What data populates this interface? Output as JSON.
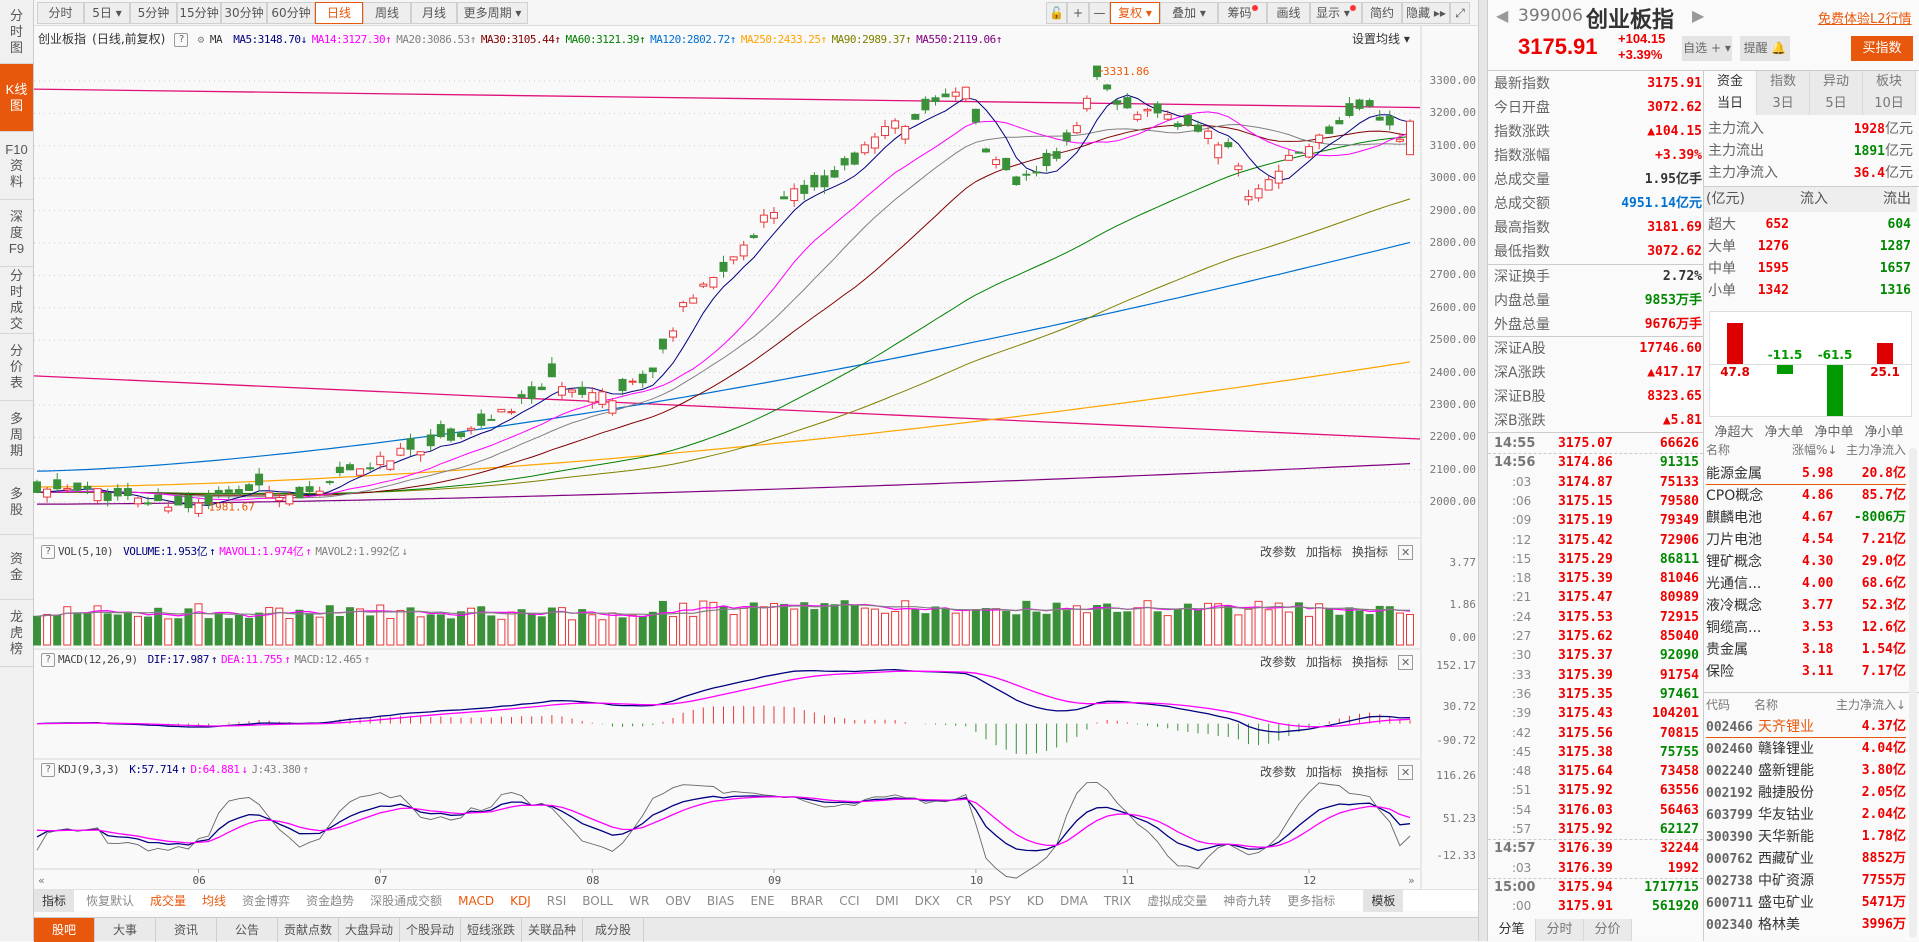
{
  "sidebar": [
    {
      "label": "分时图"
    },
    {
      "label": "K线图"
    },
    {
      "label": "F10资料"
    },
    {
      "label": "深度F9"
    },
    {
      "label": "分时成交"
    },
    {
      "label": "分价表"
    },
    {
      "label": "多周期"
    },
    {
      "label": "多股"
    },
    {
      "label": "资金"
    },
    {
      "label": "龙虎榜"
    }
  ],
  "toolbar": {
    "periods": [
      "分时",
      "5日 ▾",
      "5分钟",
      "15分钟",
      "30分钟",
      "60分钟",
      "日线",
      "周线",
      "月线",
      "更多周期 ▾"
    ],
    "active_period": "日线",
    "tools": [
      "🔓",
      "+",
      "—",
      "复权 ▾",
      "叠加 ▾",
      "筹码",
      "画线",
      "显示 ▾",
      "简约",
      "隐藏 ▸▸",
      "⤢"
    ],
    "active_tool": "复权 ▾"
  },
  "chart": {
    "title": "创业板指",
    "mode": "(日线,前复权)",
    "help": "?",
    "ma_label": "MA",
    "ma": [
      {
        "label": "MA5:3148.70",
        "arrow": "↓",
        "color": "#000080"
      },
      {
        "label": "MA14:3127.30",
        "arrow": "↑",
        "color": "#ff00ff"
      },
      {
        "label": "MA20:3086.53",
        "arrow": "↑",
        "color": "#808080"
      },
      {
        "label": "MA30:3105.44",
        "arrow": "↑",
        "color": "#800000"
      },
      {
        "label": "MA60:3121.39",
        "arrow": "↑",
        "color": "#008000"
      },
      {
        "label": "MA120:2802.72",
        "arrow": "↑",
        "color": "#0070d0"
      },
      {
        "label": "MA250:2433.25",
        "arrow": "↑",
        "color": "#ffa500"
      },
      {
        "label": "MA90:2989.37",
        "arrow": "↑",
        "color": "#808000"
      },
      {
        "label": "MA550:2119.06",
        "arrow": "↑",
        "color": "#800080"
      }
    ],
    "set_ma": "设置均线 ▾",
    "y_ticks": [
      "3300.00",
      "3200.00",
      "3100.00",
      "3000.00",
      "2900.00",
      "2800.00",
      "2700.00",
      "2600.00",
      "2500.00",
      "2400.00",
      "2300.00",
      "2200.00",
      "2100.00",
      "2000.00"
    ],
    "x_ticks": [
      "06",
      "07",
      "08",
      "09",
      "10",
      "11",
      "12"
    ],
    "high_label": "3331.86",
    "low_label": "1981.67",
    "scroll_left": "«",
    "scroll_right": "»"
  },
  "panels": {
    "actions": [
      "改参数",
      "加指标",
      "换指标"
    ],
    "close": "✕",
    "vol": {
      "name": "VOL(5,10)",
      "items": [
        {
          "label": "VOLUME:1.953亿",
          "arrow": "↑",
          "color": "#000080"
        },
        {
          "label": "MAVOL1:1.974亿",
          "arrow": "↑",
          "color": "#ff00ff"
        },
        {
          "label": "MAVOL2:1.992亿",
          "arrow": "↓",
          "color": "#808080"
        }
      ],
      "ticks": [
        "3.77",
        "1.86",
        "0.00"
      ]
    },
    "macd": {
      "name": "MACD(12,26,9)",
      "items": [
        {
          "label": "DIF:17.987",
          "arrow": "↑",
          "color": "#000080"
        },
        {
          "label": "DEA:11.755",
          "arrow": "↑",
          "color": "#ff00ff"
        },
        {
          "label": "MACD:12.465",
          "arrow": "↑",
          "color": "#808080"
        }
      ],
      "ticks": [
        "152.17",
        "30.72",
        "-90.72"
      ]
    },
    "kdj": {
      "name": "KDJ(9,3,3)",
      "items": [
        {
          "label": "K:57.714",
          "arrow": "↑",
          "color": "#000080"
        },
        {
          "label": "D:64.881",
          "arrow": "↓",
          "color": "#ff00ff"
        },
        {
          "label": "J:43.380",
          "arrow": "↑",
          "color": "#808080"
        }
      ],
      "ticks": [
        "116.26",
        "51.23",
        "-12.33"
      ]
    }
  },
  "indicator_tabs": [
    {
      "label": "指标",
      "hl": "box"
    },
    {
      "label": "恢复默认"
    },
    {
      "label": "成交量",
      "hl": "orange"
    },
    {
      "label": "均线",
      "hl": "orange"
    },
    {
      "label": "资金博弈"
    },
    {
      "label": "资金趋势"
    },
    {
      "label": "深股通成交额"
    },
    {
      "label": "MACD",
      "hl": "orange"
    },
    {
      "label": "KDJ",
      "hl": "orange"
    },
    {
      "label": "RSI"
    },
    {
      "label": "BOLL"
    },
    {
      "label": "WR"
    },
    {
      "label": "OBV"
    },
    {
      "label": "BIAS"
    },
    {
      "label": "ENE"
    },
    {
      "label": "BRAR"
    },
    {
      "label": "CCI"
    },
    {
      "label": "DMI"
    },
    {
      "label": "DKX"
    },
    {
      "label": "CR"
    },
    {
      "label": "PSY"
    },
    {
      "label": "KD"
    },
    {
      "label": "DMA"
    },
    {
      "label": "TRIX"
    },
    {
      "label": "虚拟成交量"
    },
    {
      "label": "神奇九转"
    },
    {
      "label": "更多指标"
    },
    {
      "label": "模板",
      "hl": "box"
    }
  ],
  "bottom_tabs": [
    "股吧",
    "大事",
    "资讯",
    "公告",
    "贡献点数",
    "大盘异动",
    "个股异动",
    "短线涨跌",
    "关联品种",
    "成分股"
  ],
  "quote": {
    "code": "399006",
    "name": "创业板指",
    "l2_link": "免费体验L2行情",
    "price": "3175.91",
    "change": "+104.15",
    "change_pct": "+3.39%",
    "buttons": {
      "watch": "自选 + ▾",
      "alert": "提醒 🔔",
      "buy": "买指数"
    },
    "info": [
      {
        "label": "最新指数",
        "value": "3175.91",
        "color": "red"
      },
      {
        "label": "今日开盘",
        "value": "3072.62",
        "color": "red"
      },
      {
        "label": "指数涨跌",
        "value": "▲104.15",
        "color": "red"
      },
      {
        "label": "指数涨幅",
        "value": "+3.39%",
        "color": "red"
      },
      {
        "label": "总成交量",
        "value": "1.95亿手",
        "color": "dark"
      },
      {
        "label": "总成交额",
        "value": "4951.14亿元",
        "color": "blue"
      },
      {
        "label": "最高指数",
        "value": "3181.69",
        "color": "red"
      },
      {
        "label": "最低指数",
        "value": "3072.62",
        "color": "red"
      },
      {
        "label": "深证换手",
        "value": "2.72%",
        "color": "dark"
      },
      {
        "label": "内盘总量",
        "value": "9853万手",
        "color": "green"
      },
      {
        "label": "外盘总量",
        "value": "9676万手",
        "color": "red"
      },
      {
        "label": "深证A股",
        "value": "17746.60",
        "color": "red"
      },
      {
        "label": "深A涨跌",
        "value": "▲417.17",
        "color": "red"
      },
      {
        "label": "深证B股",
        "value": "8323.65",
        "color": "red"
      },
      {
        "label": "深B涨跌",
        "value": "▲5.81",
        "color": "red"
      }
    ]
  },
  "fund": {
    "tabs": [
      "资金",
      "指数",
      "异动",
      "板块"
    ],
    "periods": [
      "当日",
      "3日",
      "5日",
      "10日"
    ],
    "main": [
      {
        "label": "主力流入",
        "value": "1928",
        "unit": "亿元",
        "color": "red"
      },
      {
        "label": "主力流出",
        "value": "1891",
        "unit": "亿元",
        "color": "green"
      },
      {
        "label": "主力净流入",
        "value": "36.4",
        "unit": "亿元",
        "color": "red"
      }
    ],
    "table_header": [
      "(亿元)",
      "流入",
      "流出"
    ],
    "rows": [
      {
        "label": "超大",
        "in": "652",
        "out": "604"
      },
      {
        "label": "大单",
        "in": "1276",
        "out": "1287"
      },
      {
        "label": "中单",
        "in": "1595",
        "out": "1657"
      },
      {
        "label": "小单",
        "in": "1342",
        "out": "1316"
      }
    ],
    "net": [
      {
        "label": "净超大",
        "value": 47.8,
        "text": "47.8"
      },
      {
        "label": "净大单",
        "value": -11.5,
        "text": "-11.5"
      },
      {
        "label": "净中单",
        "value": -61.5,
        "text": "-61.5"
      },
      {
        "label": "净小单",
        "value": 25.1,
        "text": "25.1"
      }
    ]
  },
  "ticks": [
    {
      "t": "14:55",
      "p": "3175.07",
      "v": "66626",
      "c": "red",
      "major": true
    },
    {
      "t": "14:56",
      "p": "3174.86",
      "v": "91315",
      "c": "green",
      "major": true
    },
    {
      "t": ":03",
      "p": "3174.87",
      "v": "75133",
      "c": "red"
    },
    {
      "t": ":06",
      "p": "3175.15",
      "v": "79580",
      "c": "red"
    },
    {
      "t": ":09",
      "p": "3175.19",
      "v": "79349",
      "c": "red"
    },
    {
      "t": ":12",
      "p": "3175.42",
      "v": "72906",
      "c": "red"
    },
    {
      "t": ":15",
      "p": "3175.29",
      "v": "86811",
      "c": "green"
    },
    {
      "t": ":18",
      "p": "3175.39",
      "v": "81046",
      "c": "red"
    },
    {
      "t": ":21",
      "p": "3175.47",
      "v": "80989",
      "c": "red"
    },
    {
      "t": ":24",
      "p": "3175.53",
      "v": "72915",
      "c": "red"
    },
    {
      "t": ":27",
      "p": "3175.62",
      "v": "85040",
      "c": "red"
    },
    {
      "t": ":30",
      "p": "3175.37",
      "v": "92090",
      "c": "green"
    },
    {
      "t": ":33",
      "p": "3175.39",
      "v": "91754",
      "c": "red"
    },
    {
      "t": ":36",
      "p": "3175.35",
      "v": "97461",
      "c": "green"
    },
    {
      "t": ":39",
      "p": "3175.43",
      "v": "104201",
      "c": "red"
    },
    {
      "t": ":42",
      "p": "3175.56",
      "v": "70815",
      "c": "red"
    },
    {
      "t": ":45",
      "p": "3175.38",
      "v": "75755",
      "c": "green"
    },
    {
      "t": ":48",
      "p": "3175.64",
      "v": "73458",
      "c": "red"
    },
    {
      "t": ":51",
      "p": "3175.92",
      "v": "63556",
      "c": "red"
    },
    {
      "t": ":54",
      "p": "3176.03",
      "v": "56463",
      "c": "red"
    },
    {
      "t": ":57",
      "p": "3175.92",
      "v": "62127",
      "c": "green"
    },
    {
      "t": "14:57",
      "p": "3176.39",
      "v": "32244",
      "c": "red",
      "major": true
    },
    {
      "t": ":03",
      "p": "3176.39",
      "v": "1992",
      "c": "red"
    },
    {
      "t": "15:00",
      "p": "3175.94",
      "v": "1717715",
      "c": "green",
      "major": true
    },
    {
      "t": ":00",
      "p": "3175.91",
      "v": "561920",
      "c": "green"
    }
  ],
  "tick_tabs": [
    "分笔",
    "分时",
    "分价"
  ],
  "sectors": {
    "header": [
      "名称",
      "涨幅%↓",
      "主力净流入"
    ],
    "rows": [
      {
        "name": "能源金属",
        "pct": "5.98",
        "flow": "20.8亿",
        "c": "red"
      },
      {
        "name": "CPO概念",
        "pct": "4.86",
        "flow": "85.7亿",
        "c": "red"
      },
      {
        "name": "麒麟电池",
        "pct": "4.67",
        "flow": "-8006万",
        "c": "green"
      },
      {
        "name": "刀片电池",
        "pct": "4.54",
        "flow": "7.21亿",
        "c": "red"
      },
      {
        "name": "锂矿概念",
        "pct": "4.30",
        "flow": "29.0亿",
        "c": "red"
      },
      {
        "name": "光通信...",
        "pct": "4.00",
        "flow": "68.6亿",
        "c": "red"
      },
      {
        "name": "液冷概念",
        "pct": "3.77",
        "flow": "52.3亿",
        "c": "red"
      },
      {
        "name": "铜缆高...",
        "pct": "3.53",
        "flow": "12.6亿",
        "c": "red"
      },
      {
        "name": "贵金属",
        "pct": "3.18",
        "flow": "1.54亿",
        "c": "red"
      },
      {
        "name": "保险",
        "pct": "3.11",
        "flow": "7.17亿",
        "c": "red"
      }
    ]
  },
  "stocks": {
    "header": [
      "代码",
      "名称",
      "主力净流入↓"
    ],
    "rows": [
      {
        "code": "002466",
        "name": "天齐锂业",
        "flow": "4.37亿"
      },
      {
        "code": "002460",
        "name": "赣锋锂业",
        "flow": "4.04亿"
      },
      {
        "code": "002240",
        "name": "盛新锂能",
        "flow": "3.80亿"
      },
      {
        "code": "002192",
        "name": "融捷股份",
        "flow": "2.05亿"
      },
      {
        "code": "603799",
        "name": "华友钴业",
        "flow": "2.04亿"
      },
      {
        "code": "300390",
        "name": "天华新能",
        "flow": "1.78亿"
      },
      {
        "code": "000762",
        "name": "西藏矿业",
        "flow": "8852万"
      },
      {
        "code": "002738",
        "name": "中矿资源",
        "flow": "7755万"
      },
      {
        "code": "600711",
        "name": "盛屯矿业",
        "flow": "5471万"
      },
      {
        "code": "002340",
        "name": "格林美",
        "flow": "3996万"
      }
    ]
  },
  "colors": {
    "up": "#e8383a",
    "down": "#3a913a",
    "accent": "#e8580c"
  },
  "chart_data": {
    "type": "candlestick",
    "title": "创业板指",
    "period": "日线",
    "x_ticks": [
      "06",
      "07",
      "08",
      "09",
      "10",
      "11",
      "12"
    ],
    "ylim": [
      1950,
      3350
    ],
    "annotations": {
      "high": 3331.86,
      "low": 1981.67
    },
    "last_bar": {
      "open": 3072.62,
      "high": 3181.69,
      "low": 3072.62,
      "close": 3175.91
    },
    "ma_latest": {
      "MA5": 3148.7,
      "MA14": 3127.3,
      "MA20": 3086.53,
      "MA30": 3105.44,
      "MA60": 3121.39,
      "MA120": 2802.72,
      "MA250": 2433.25,
      "MA90": 2989.37,
      "MA550": 2119.06
    },
    "volume_latest": {
      "VOLUME": 1.953,
      "MAVOL1": 1.974,
      "MAVOL2": 1.992
    },
    "macd_latest": {
      "DIF": 17.987,
      "DEA": 11.755,
      "MACD": 12.465
    },
    "kdj_latest": {
      "K": 57.714,
      "D": 64.881,
      "J": 43.38
    }
  }
}
